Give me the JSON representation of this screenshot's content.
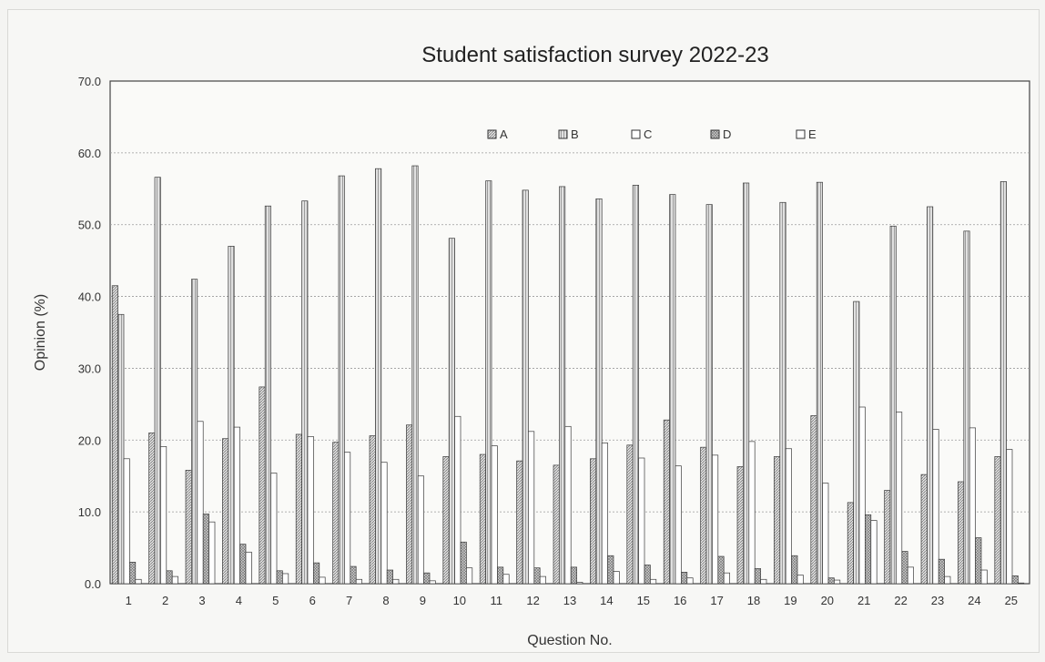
{
  "chart_data": {
    "type": "bar",
    "title": "Student satisfaction survey 2022-23",
    "xlabel": "Question No.",
    "ylabel": "Opinion (%)",
    "ylim": [
      0,
      70
    ],
    "yticks": [
      "0.0",
      "10.0",
      "20.0",
      "30.0",
      "40.0",
      "50.0",
      "60.0",
      "70.0"
    ],
    "grid": true,
    "legend_position": "top",
    "categories": [
      "1",
      "2",
      "3",
      "4",
      "5",
      "6",
      "7",
      "8",
      "9",
      "10",
      "11",
      "12",
      "13",
      "14",
      "15",
      "16",
      "17",
      "18",
      "19",
      "20",
      "21",
      "22",
      "23",
      "24",
      "25"
    ],
    "series": [
      {
        "name": "A",
        "values": [
          41.5,
          21.0,
          15.8,
          20.2,
          27.4,
          20.8,
          19.7,
          20.6,
          22.1,
          17.7,
          18.0,
          17.1,
          16.5,
          17.4,
          19.3,
          22.8,
          19.0,
          16.3,
          17.7,
          23.4,
          11.3,
          13.0,
          15.2,
          14.2,
          17.7
        ]
      },
      {
        "name": "B",
        "values": [
          37.5,
          56.6,
          42.4,
          47.0,
          52.6,
          53.3,
          56.8,
          57.8,
          58.2,
          48.1,
          56.1,
          54.8,
          55.3,
          53.6,
          55.5,
          54.2,
          52.8,
          55.8,
          53.1,
          55.9,
          39.3,
          49.8,
          52.5,
          49.1,
          56.0
        ]
      },
      {
        "name": "C",
        "values": [
          17.4,
          19.1,
          22.6,
          21.8,
          15.4,
          20.5,
          18.3,
          16.9,
          15.0,
          23.3,
          19.2,
          21.2,
          21.9,
          19.6,
          17.5,
          16.4,
          17.9,
          19.8,
          18.8,
          14.0,
          24.6,
          23.9,
          21.5,
          21.7,
          18.7
        ]
      },
      {
        "name": "D",
        "values": [
          3.0,
          1.8,
          9.7,
          5.5,
          1.8,
          2.9,
          2.4,
          1.9,
          1.5,
          5.8,
          2.3,
          2.2,
          2.3,
          3.9,
          2.6,
          1.6,
          3.8,
          2.1,
          3.9,
          0.8,
          9.6,
          4.5,
          3.4,
          6.4,
          1.1
        ]
      },
      {
        "name": "E",
        "values": [
          0.6,
          1.0,
          8.6,
          4.4,
          1.4,
          0.9,
          0.6,
          0.6,
          0.4,
          2.2,
          1.3,
          1.0,
          0.2,
          1.7,
          0.6,
          0.8,
          1.5,
          0.6,
          1.2,
          0.5,
          8.8,
          2.3,
          1.0,
          1.9,
          0.1
        ]
      }
    ],
    "colors": {
      "A": "#c4c4c4",
      "B": "#d2d2d2",
      "C": "#ffffff",
      "D": "#b9b9b9",
      "E": "#ffffff"
    }
  }
}
